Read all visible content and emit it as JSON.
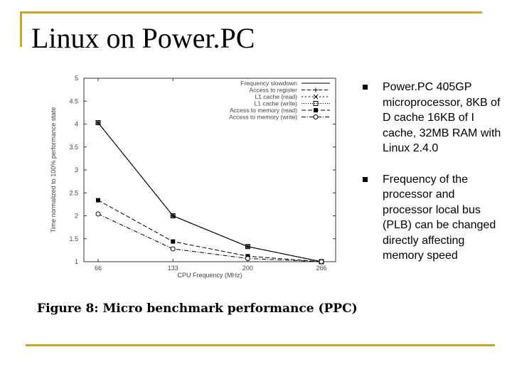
{
  "slide": {
    "title": "Linux on Power.PC",
    "caption": "Figure 8: Micro benchmark performance (PPC)",
    "bullets": [
      "Power.PC 405GP microprocessor, 8KB of D cache 16KB of I cache, 32MB RAM with Linux 2.4.0",
      "Frequency of the processor and processor local bus (PLB) can be changed directly affecting memory speed"
    ]
  },
  "colors": {
    "frame": "#c8a72b",
    "text": "#000000"
  },
  "chart_data": {
    "type": "line",
    "title": "",
    "xlabel": "CPU Frequency (MHz)",
    "ylabel": "Time normalized to 100% performance state",
    "x": [
      66,
      133,
      200,
      266
    ],
    "xticks": [
      "66",
      "133",
      "200",
      "266"
    ],
    "yticks": [
      "1",
      "1.5",
      "2",
      "2.5",
      "3",
      "3.5",
      "4",
      "4.5",
      "5"
    ],
    "ylim": [
      1,
      5
    ],
    "legend_position": "top-right",
    "series": [
      {
        "name": "Frequency slowdown",
        "values": [
          4.03,
          2.0,
          1.33,
          1.0
        ],
        "marker": "none",
        "dash": ""
      },
      {
        "name": "Access to register",
        "values": [
          4.03,
          2.0,
          1.33,
          1.0
        ],
        "marker": "plus",
        "dash": "5,3"
      },
      {
        "name": "L1 cache (read)",
        "values": [
          4.03,
          2.0,
          1.33,
          1.0
        ],
        "marker": "x",
        "dash": "2,3"
      },
      {
        "name": "L1 cache (write)",
        "values": [
          4.03,
          2.0,
          1.33,
          1.0
        ],
        "marker": "box",
        "dash": "1,2"
      },
      {
        "name": "Access to memory (read)",
        "values": [
          2.34,
          1.44,
          1.12,
          1.0
        ],
        "marker": "filled-square",
        "dash": "6,3"
      },
      {
        "name": "Access to memory (write)",
        "values": [
          2.04,
          1.28,
          1.07,
          1.0
        ],
        "marker": "circle",
        "dash": "6,2,1,2"
      }
    ]
  }
}
